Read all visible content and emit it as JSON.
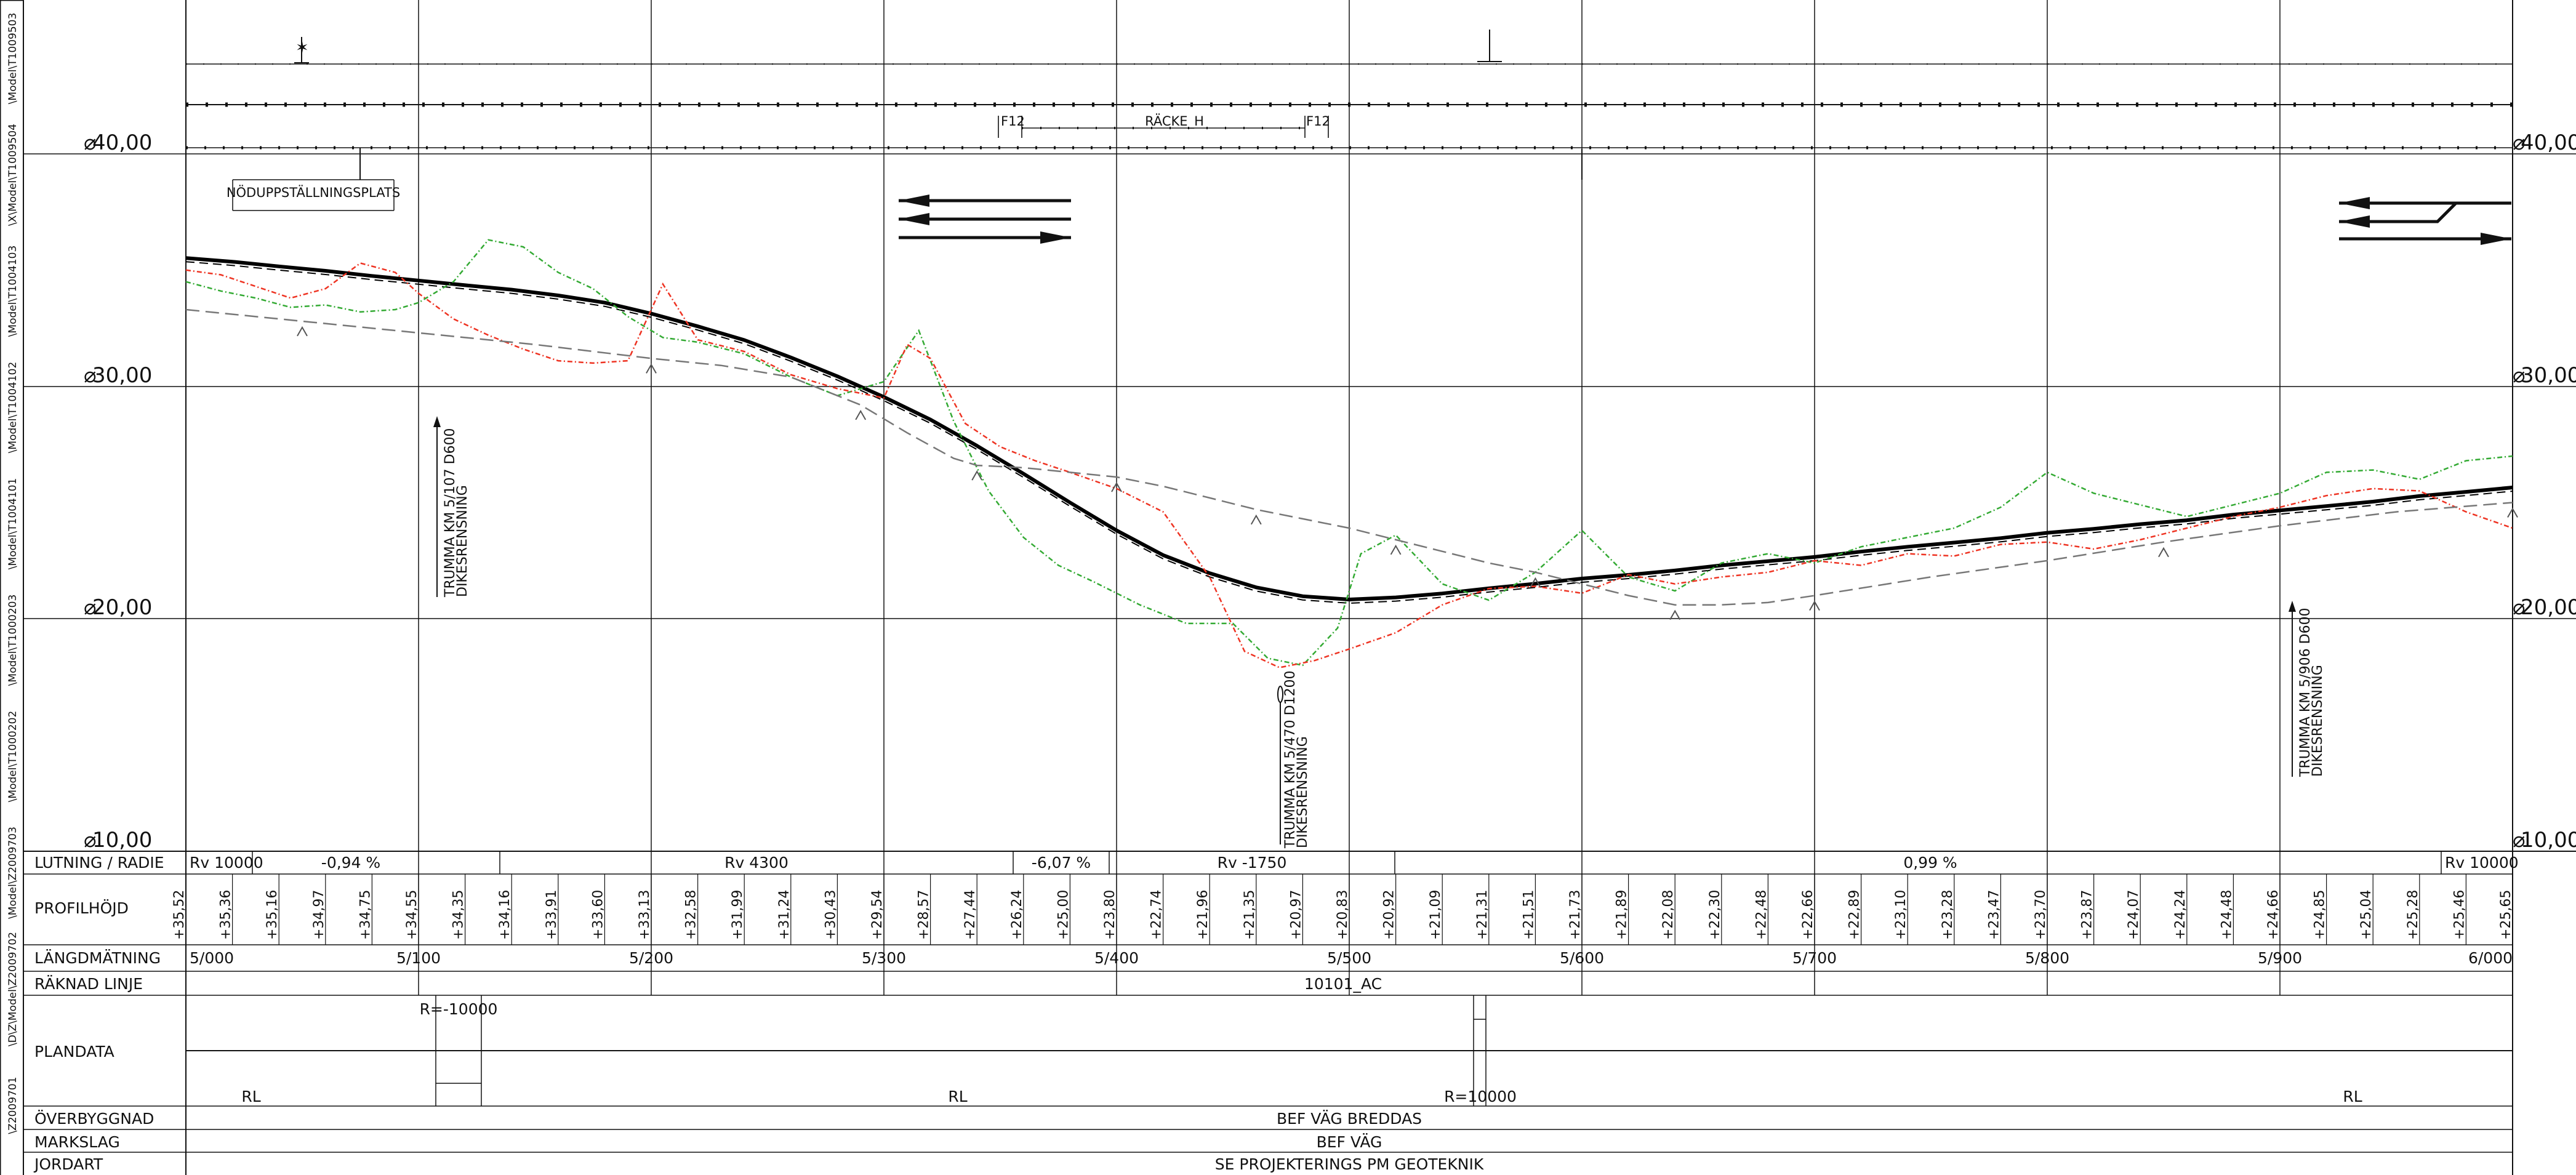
{
  "sheet": {
    "elevation_labels": [
      "40,00",
      "30,00",
      "20,00",
      "10,00"
    ],
    "left_sidebar_refs": [
      "\\Model\\T1009503",
      "\\X\\Model\\T1009504",
      "\\Model\\T1004103",
      "\\Model\\T1004102",
      "\\Model\\T1004101",
      "\\Model\\T1000203",
      "\\Model\\T1000202",
      "\\Model\\Z2009703",
      "\\D\\Z\\Model\\Z2009702",
      "\\Z2009701"
    ]
  },
  "annotations": {
    "nodupp": "NÖDUPPSTÄLLNINGSPLATS",
    "f12_left": "F12",
    "racke": "RÄCKE_H",
    "f12_right": "F12",
    "culvert1_a": "TRUMMA KM 5/107 D600",
    "culvert1_b": "DIKESRENSNING",
    "culvert2_a": "TRUMMA KM 5/470 D1200",
    "culvert2_b": "DIKESRENSNING",
    "culvert3_a": "TRUMMA KM 5/906 D600",
    "culvert3_b": "DIKESRENSNING"
  },
  "table": {
    "row_labels": {
      "lutning": "LUTNING / RADIE",
      "profilhojd": "PROFILHÖJD",
      "langd": "LÄNGDMÄTNING",
      "raknad": "RÄKNAD LINJE",
      "plandata": "PLANDATA",
      "overbyggnad": "ÖVERBYGGNAD",
      "markslag": "MARKSLAG",
      "jordart": "JORDART"
    },
    "lutning": {
      "rv10000_left": "Rv 10000",
      "grade1": "-0,94 %",
      "rv4300": "Rv 4300",
      "grade2": "-6,07 %",
      "rv1750": "Rv -1750",
      "grade3": "0,99 %",
      "rv10000_right": "Rv 10000"
    },
    "profilhojd": [
      "+35,52",
      "+35,36",
      "+35,16",
      "+34,97",
      "+34,75",
      "+34,55",
      "+34,35",
      "+34,16",
      "+33,91",
      "+33,60",
      "+33,13",
      "+32,58",
      "+31,99",
      "+31,24",
      "+30,43",
      "+29,54",
      "+28,57",
      "+27,44",
      "+26,24",
      "+25,00",
      "+23,80",
      "+22,74",
      "+21,96",
      "+21,35",
      "+20,97",
      "+20,83",
      "+20,92",
      "+21,09",
      "+21,31",
      "+21,51",
      "+21,73",
      "+21,89",
      "+22,08",
      "+22,30",
      "+22,48",
      "+22,66",
      "+22,89",
      "+23,10",
      "+23,28",
      "+23,47",
      "+23,70",
      "+23,87",
      "+24,07",
      "+24,24",
      "+24,48",
      "+24,66",
      "+24,85",
      "+25,04",
      "+25,28",
      "+25,46",
      "+25,65"
    ],
    "langd": [
      "5/000",
      "5/100",
      "5/200",
      "5/300",
      "5/400",
      "5/500",
      "5/600",
      "5/700",
      "5/800",
      "5/900",
      "6/000"
    ],
    "raknad_linje": "10101_AC",
    "plandata": {
      "r_neg": "R=-10000",
      "rl1": "RL",
      "rl2": "RL",
      "r_pos": "R=10000",
      "rl3": "RL"
    },
    "overbyggnad": "BEF VÄG BREDDAS",
    "markslag": "BEF VÄG",
    "jordart": "SE PROJEKTERINGS PM GEOTEKNIK"
  },
  "chart_data": {
    "type": "line",
    "xlabel": "",
    "ylabel": "",
    "x_ticks": [
      "5/000",
      "5/100",
      "5/200",
      "5/300",
      "5/400",
      "5/500",
      "5/600",
      "5/700",
      "5/800",
      "5/900",
      "6/000"
    ],
    "xlim": [
      5000,
      6000
    ],
    "ylim": [
      10,
      43
    ],
    "series": [
      {
        "key": "road",
        "color": "#000000",
        "x": [
          5000,
          5020,
          5040,
          5060,
          5080,
          5100,
          5120,
          5140,
          5160,
          5180,
          5200,
          5220,
          5240,
          5260,
          5280,
          5300,
          5320,
          5340,
          5360,
          5380,
          5400,
          5420,
          5440,
          5460,
          5480,
          5500,
          5520,
          5540,
          5560,
          5580,
          5600,
          5620,
          5640,
          5660,
          5680,
          5700,
          5720,
          5740,
          5760,
          5780,
          5800,
          5820,
          5840,
          5860,
          5880,
          5900,
          5920,
          5940,
          5960,
          5980,
          6000
        ],
        "y": [
          35.52,
          35.36,
          35.16,
          34.97,
          34.75,
          34.55,
          34.35,
          34.16,
          33.91,
          33.6,
          33.13,
          32.58,
          31.99,
          31.24,
          30.43,
          29.54,
          28.57,
          27.44,
          26.24,
          25.0,
          23.8,
          22.74,
          21.96,
          21.35,
          20.97,
          20.83,
          20.92,
          21.09,
          21.31,
          21.51,
          21.73,
          21.89,
          22.08,
          22.3,
          22.48,
          22.66,
          22.89,
          23.1,
          23.28,
          23.47,
          23.7,
          23.87,
          24.07,
          24.24,
          24.48,
          24.66,
          24.85,
          25.04,
          25.28,
          25.46,
          25.65
        ]
      },
      {
        "key": "terrain_green",
        "color": "#33aa33",
        "x": [
          5000,
          5015,
          5030,
          5045,
          5060,
          5075,
          5090,
          5100,
          5115,
          5130,
          5145,
          5160,
          5175,
          5190,
          5205,
          5220,
          5240,
          5260,
          5280,
          5300,
          5315,
          5330,
          5345,
          5360,
          5375,
          5390,
          5410,
          5430,
          5450,
          5465,
          5480,
          5495,
          5505,
          5520,
          5540,
          5560,
          5580,
          5600,
          5620,
          5640,
          5660,
          5680,
          5700,
          5720,
          5740,
          5760,
          5780,
          5800,
          5820,
          5840,
          5860,
          5880,
          5900,
          5920,
          5940,
          5960,
          5980,
          6000
        ],
        "y": [
          34.5,
          34.1,
          33.8,
          33.4,
          33.5,
          33.2,
          33.3,
          33.6,
          34.5,
          36.3,
          36.0,
          34.9,
          34.2,
          33.0,
          32.1,
          31.9,
          31.4,
          30.4,
          29.6,
          30.2,
          32.4,
          28.5,
          25.5,
          23.5,
          22.3,
          21.6,
          20.6,
          19.8,
          19.8,
          18.3,
          18.0,
          19.6,
          22.8,
          23.6,
          21.5,
          20.8,
          22.0,
          23.8,
          21.8,
          21.2,
          22.4,
          22.8,
          22.4,
          23.1,
          23.5,
          23.9,
          24.8,
          26.3,
          25.4,
          24.9,
          24.4,
          24.9,
          25.4,
          26.3,
          26.4,
          26.0,
          26.8,
          27.0
        ]
      },
      {
        "key": "terrain_red",
        "color": "#ee3322",
        "x": [
          5000,
          5015,
          5030,
          5045,
          5060,
          5075,
          5090,
          5100,
          5115,
          5130,
          5145,
          5160,
          5175,
          5190,
          5205,
          5220,
          5240,
          5260,
          5280,
          5300,
          5310,
          5320,
          5335,
          5350,
          5365,
          5380,
          5400,
          5420,
          5440,
          5455,
          5470,
          5485,
          5500,
          5520,
          5540,
          5560,
          5580,
          5600,
          5620,
          5640,
          5660,
          5680,
          5700,
          5720,
          5740,
          5760,
          5780,
          5800,
          5820,
          5840,
          5860,
          5880,
          5900,
          5920,
          5940,
          5960,
          5980,
          6000
        ],
        "y": [
          35.0,
          34.8,
          34.3,
          33.8,
          34.2,
          35.3,
          34.9,
          34.0,
          32.9,
          32.2,
          31.6,
          31.1,
          31.0,
          31.1,
          34.4,
          32.0,
          31.5,
          30.5,
          29.9,
          29.5,
          31.8,
          31.2,
          28.4,
          27.4,
          26.8,
          26.3,
          25.6,
          24.6,
          21.8,
          18.6,
          17.9,
          18.2,
          18.7,
          19.4,
          20.6,
          21.3,
          21.4,
          21.1,
          21.9,
          21.5,
          21.8,
          22.0,
          22.5,
          22.3,
          22.8,
          22.7,
          23.2,
          23.3,
          23.0,
          23.4,
          23.9,
          24.4,
          24.8,
          25.3,
          25.6,
          25.5,
          24.6,
          23.9
        ]
      },
      {
        "key": "subgrade_dashed",
        "color": "#777777",
        "x": [
          5000,
          5050,
          5100,
          5150,
          5200,
          5230,
          5260,
          5290,
          5310,
          5330,
          5340,
          5360,
          5380,
          5400,
          5420,
          5440,
          5460,
          5480,
          5500,
          5520,
          5540,
          5560,
          5580,
          5600,
          5620,
          5640,
          5660,
          5680,
          5700,
          5750,
          5800,
          5850,
          5900,
          5950,
          6000
        ],
        "y": [
          33.3,
          32.8,
          32.3,
          31.8,
          31.2,
          30.9,
          30.4,
          29.2,
          28.0,
          26.9,
          26.6,
          26.5,
          26.3,
          26.1,
          25.7,
          25.2,
          24.7,
          24.3,
          23.9,
          23.4,
          22.9,
          22.4,
          22.0,
          21.5,
          21.0,
          20.6,
          20.6,
          20.7,
          21.0,
          21.8,
          22.5,
          23.3,
          24.0,
          24.6,
          25.0
        ]
      }
    ]
  }
}
